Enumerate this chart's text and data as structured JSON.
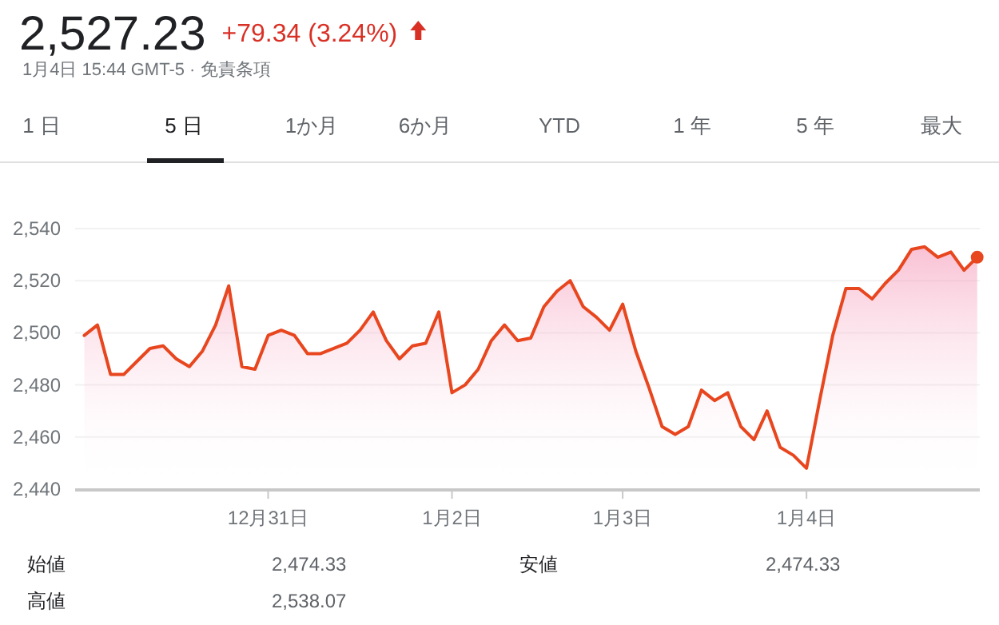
{
  "chart_data": {
    "type": "area",
    "title": "2,527.23",
    "subtitle": "+79.34 (3.24%)",
    "annotations": [
      "1月4日 15:44 GMT-5 · 免責条項",
      "1 日",
      "5 日",
      "1か月",
      "6か月",
      "YTD",
      "1 年",
      "5 年",
      "最大",
      "始値",
      "2,474.33",
      "安値",
      "2,474.33",
      "高値",
      "2,538.07"
    ],
    "categories": [
      null,
      null,
      null,
      null,
      null,
      null,
      null,
      null,
      null,
      null,
      null,
      null,
      null,
      null,
      "12月31日",
      null,
      null,
      null,
      null,
      null,
      null,
      null,
      null,
      null,
      null,
      null,
      null,
      null,
      "1月2日",
      null,
      null,
      null,
      null,
      null,
      null,
      null,
      null,
      null,
      null,
      null,
      null,
      "1月3日",
      null,
      null,
      null,
      null,
      null,
      null,
      null,
      null,
      null,
      null,
      null,
      null,
      null,
      "1月4日",
      null,
      null,
      null,
      null,
      null,
      null,
      null,
      null,
      null,
      null,
      null,
      null,
      null
    ],
    "series": [
      {
        "color": "#e8461e",
        "values": [
          2499,
          2503,
          2484,
          2484,
          2489,
          2494,
          2495,
          2490,
          2487,
          2493,
          2503,
          2518,
          2487,
          2486,
          2499,
          2501,
          2499,
          2492,
          2492,
          2494,
          2496,
          2501,
          2508,
          2497,
          2490,
          2495,
          2496,
          2508,
          2477,
          2480,
          2486,
          2497,
          2503,
          2497,
          2498,
          2510,
          2516,
          2520,
          2510,
          2506,
          2501,
          2511,
          2493,
          2479,
          2464,
          2461,
          2464,
          2478,
          2474,
          2477,
          2464,
          2459,
          2470,
          2456,
          2453,
          2448,
          2474,
          2499,
          2517,
          2517,
          2513,
          2519,
          2524,
          2532,
          2533,
          2529,
          2531,
          2524,
          2529
        ]
      }
    ],
    "ylim": [
      2440,
      2540
    ],
    "yticks": [
      {
        "value": 2440,
        "label": "2,440"
      },
      {
        "value": 2460,
        "label": "2,460"
      },
      {
        "value": 2480,
        "label": "2,480"
      },
      {
        "value": 2500,
        "label": "2,500"
      },
      {
        "value": 2520,
        "label": "2,520"
      },
      {
        "value": 2540,
        "label": "2,540"
      }
    ],
    "grid": "y"
  }
}
